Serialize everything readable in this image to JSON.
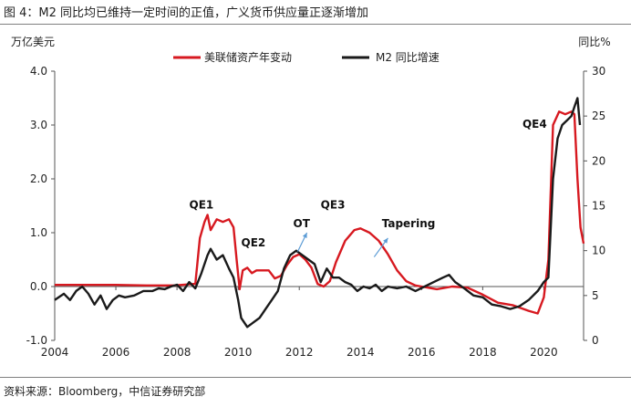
{
  "title": "图 4：M2 同比均已维持一定时间的正值，广义货币供应量正逐渐增加",
  "source": "资料来源：Bloomberg，中信证券研究部",
  "chart_data": {
    "type": "line",
    "left_unit": "万亿美元",
    "right_unit": "同比%",
    "left_ylim": [
      -1.0,
      4.0
    ],
    "right_ylim": [
      0,
      30
    ],
    "left_ticks": [
      "-1.0",
      "0.0",
      "1.0",
      "2.0",
      "3.0",
      "4.0"
    ],
    "right_ticks": [
      "0",
      "5",
      "10",
      "15",
      "20",
      "25",
      "30"
    ],
    "xlim": [
      2004,
      2021.3
    ],
    "x_ticks": [
      "2004",
      "2006",
      "2008",
      "2010",
      "2012",
      "2014",
      "2016",
      "2018",
      "2020"
    ],
    "series": [
      {
        "name": "美联储资产年变动",
        "axis": "left",
        "color": "#d71920",
        "points": [
          [
            2004.0,
            0.03
          ],
          [
            2005.0,
            0.03
          ],
          [
            2006.0,
            0.03
          ],
          [
            2007.0,
            0.02
          ],
          [
            2007.9,
            0.02
          ],
          [
            2008.6,
            0.05
          ],
          [
            2008.75,
            0.9
          ],
          [
            2008.9,
            1.2
          ],
          [
            2009.0,
            1.33
          ],
          [
            2009.1,
            1.05
          ],
          [
            2009.3,
            1.25
          ],
          [
            2009.5,
            1.2
          ],
          [
            2009.7,
            1.25
          ],
          [
            2009.85,
            1.1
          ],
          [
            2009.95,
            0.5
          ],
          [
            2010.05,
            -0.05
          ],
          [
            2010.15,
            0.3
          ],
          [
            2010.3,
            0.35
          ],
          [
            2010.45,
            0.25
          ],
          [
            2010.6,
            0.3
          ],
          [
            2010.8,
            0.3
          ],
          [
            2011.0,
            0.3
          ],
          [
            2011.2,
            0.15
          ],
          [
            2011.4,
            0.2
          ],
          [
            2011.6,
            0.4
          ],
          [
            2011.8,
            0.55
          ],
          [
            2012.0,
            0.6
          ],
          [
            2012.2,
            0.5
          ],
          [
            2012.4,
            0.35
          ],
          [
            2012.6,
            0.05
          ],
          [
            2012.8,
            0.0
          ],
          [
            2013.0,
            0.1
          ],
          [
            2013.2,
            0.45
          ],
          [
            2013.5,
            0.85
          ],
          [
            2013.8,
            1.05
          ],
          [
            2014.0,
            1.08
          ],
          [
            2014.3,
            1.0
          ],
          [
            2014.6,
            0.85
          ],
          [
            2014.9,
            0.6
          ],
          [
            2015.2,
            0.3
          ],
          [
            2015.5,
            0.1
          ],
          [
            2015.8,
            0.02
          ],
          [
            2016.0,
            0.0
          ],
          [
            2016.5,
            -0.05
          ],
          [
            2017.0,
            0.0
          ],
          [
            2017.5,
            -0.02
          ],
          [
            2018.0,
            -0.15
          ],
          [
            2018.5,
            -0.3
          ],
          [
            2019.0,
            -0.35
          ],
          [
            2019.5,
            -0.45
          ],
          [
            2019.8,
            -0.5
          ],
          [
            2020.0,
            -0.2
          ],
          [
            2020.15,
            0.5
          ],
          [
            2020.3,
            3.0
          ],
          [
            2020.5,
            3.25
          ],
          [
            2020.7,
            3.2
          ],
          [
            2020.9,
            3.25
          ],
          [
            2021.0,
            3.2
          ],
          [
            2021.1,
            2.0
          ],
          [
            2021.2,
            1.1
          ],
          [
            2021.3,
            0.8
          ]
        ]
      },
      {
        "name": "M2 同比增速",
        "axis": "right",
        "color": "#1a1a1a",
        "points": [
          [
            2004.0,
            4.5
          ],
          [
            2004.3,
            5.2
          ],
          [
            2004.5,
            4.5
          ],
          [
            2004.7,
            5.5
          ],
          [
            2004.9,
            6.0
          ],
          [
            2005.1,
            5.2
          ],
          [
            2005.3,
            4.0
          ],
          [
            2005.5,
            5.0
          ],
          [
            2005.7,
            3.5
          ],
          [
            2005.9,
            4.5
          ],
          [
            2006.1,
            5.0
          ],
          [
            2006.3,
            4.8
          ],
          [
            2006.6,
            5.0
          ],
          [
            2006.9,
            5.5
          ],
          [
            2007.2,
            5.5
          ],
          [
            2007.4,
            5.8
          ],
          [
            2007.6,
            5.7
          ],
          [
            2007.8,
            6.0
          ],
          [
            2008.0,
            6.2
          ],
          [
            2008.2,
            5.5
          ],
          [
            2008.4,
            6.5
          ],
          [
            2008.6,
            5.8
          ],
          [
            2008.8,
            7.5
          ],
          [
            2009.0,
            9.5
          ],
          [
            2009.1,
            10.2
          ],
          [
            2009.3,
            9.0
          ],
          [
            2009.5,
            9.5
          ],
          [
            2009.7,
            8.0
          ],
          [
            2009.85,
            7.0
          ],
          [
            2010.0,
            4.5
          ],
          [
            2010.1,
            2.5
          ],
          [
            2010.3,
            1.5
          ],
          [
            2010.5,
            2.0
          ],
          [
            2010.7,
            2.5
          ],
          [
            2010.9,
            3.5
          ],
          [
            2011.1,
            4.5
          ],
          [
            2011.3,
            5.5
          ],
          [
            2011.5,
            8.0
          ],
          [
            2011.7,
            9.5
          ],
          [
            2011.9,
            10.0
          ],
          [
            2012.1,
            9.5
          ],
          [
            2012.3,
            9.0
          ],
          [
            2012.5,
            8.5
          ],
          [
            2012.7,
            6.5
          ],
          [
            2012.9,
            8.0
          ],
          [
            2013.1,
            7.0
          ],
          [
            2013.3,
            7.0
          ],
          [
            2013.5,
            6.5
          ],
          [
            2013.7,
            6.2
          ],
          [
            2013.9,
            5.5
          ],
          [
            2014.1,
            6.0
          ],
          [
            2014.3,
            5.8
          ],
          [
            2014.5,
            6.2
          ],
          [
            2014.7,
            5.5
          ],
          [
            2014.9,
            6.0
          ],
          [
            2015.2,
            5.8
          ],
          [
            2015.5,
            6.0
          ],
          [
            2015.8,
            5.5
          ],
          [
            2016.1,
            6.0
          ],
          [
            2016.4,
            6.5
          ],
          [
            2016.7,
            7.0
          ],
          [
            2016.9,
            7.3
          ],
          [
            2017.1,
            6.5
          ],
          [
            2017.4,
            5.8
          ],
          [
            2017.7,
            5.0
          ],
          [
            2018.0,
            4.8
          ],
          [
            2018.3,
            4.0
          ],
          [
            2018.6,
            3.8
          ],
          [
            2018.9,
            3.5
          ],
          [
            2019.2,
            3.8
          ],
          [
            2019.5,
            4.5
          ],
          [
            2019.8,
            5.5
          ],
          [
            2020.0,
            6.5
          ],
          [
            2020.15,
            7.0
          ],
          [
            2020.3,
            18.0
          ],
          [
            2020.45,
            22.5
          ],
          [
            2020.6,
            24.0
          ],
          [
            2020.75,
            24.5
          ],
          [
            2020.9,
            25.0
          ],
          [
            2021.0,
            26.0
          ],
          [
            2021.1,
            27.0
          ],
          [
            2021.18,
            24.0
          ]
        ]
      }
    ],
    "annotations": [
      {
        "label": "QE1",
        "x": 2008.4,
        "y": 1.45,
        "axis": "left"
      },
      {
        "label": "QE2",
        "x": 2010.1,
        "y": 0.75,
        "axis": "left"
      },
      {
        "label": "OT",
        "x": 2011.8,
        "y": 1.1,
        "axis": "left"
      },
      {
        "label": "QE3",
        "x": 2012.7,
        "y": 1.45,
        "axis": "left"
      },
      {
        "label": "Tapering",
        "x": 2014.7,
        "y": 1.1,
        "axis": "left"
      },
      {
        "label": "QE4",
        "x": 2019.3,
        "y": 2.95,
        "axis": "left"
      }
    ],
    "arrows": [
      {
        "from": [
          2011.95,
          0.65
        ],
        "to": [
          2012.25,
          1.0
        ]
      },
      {
        "from": [
          2014.45,
          0.55
        ],
        "to": [
          2014.9,
          0.9
        ]
      }
    ]
  }
}
